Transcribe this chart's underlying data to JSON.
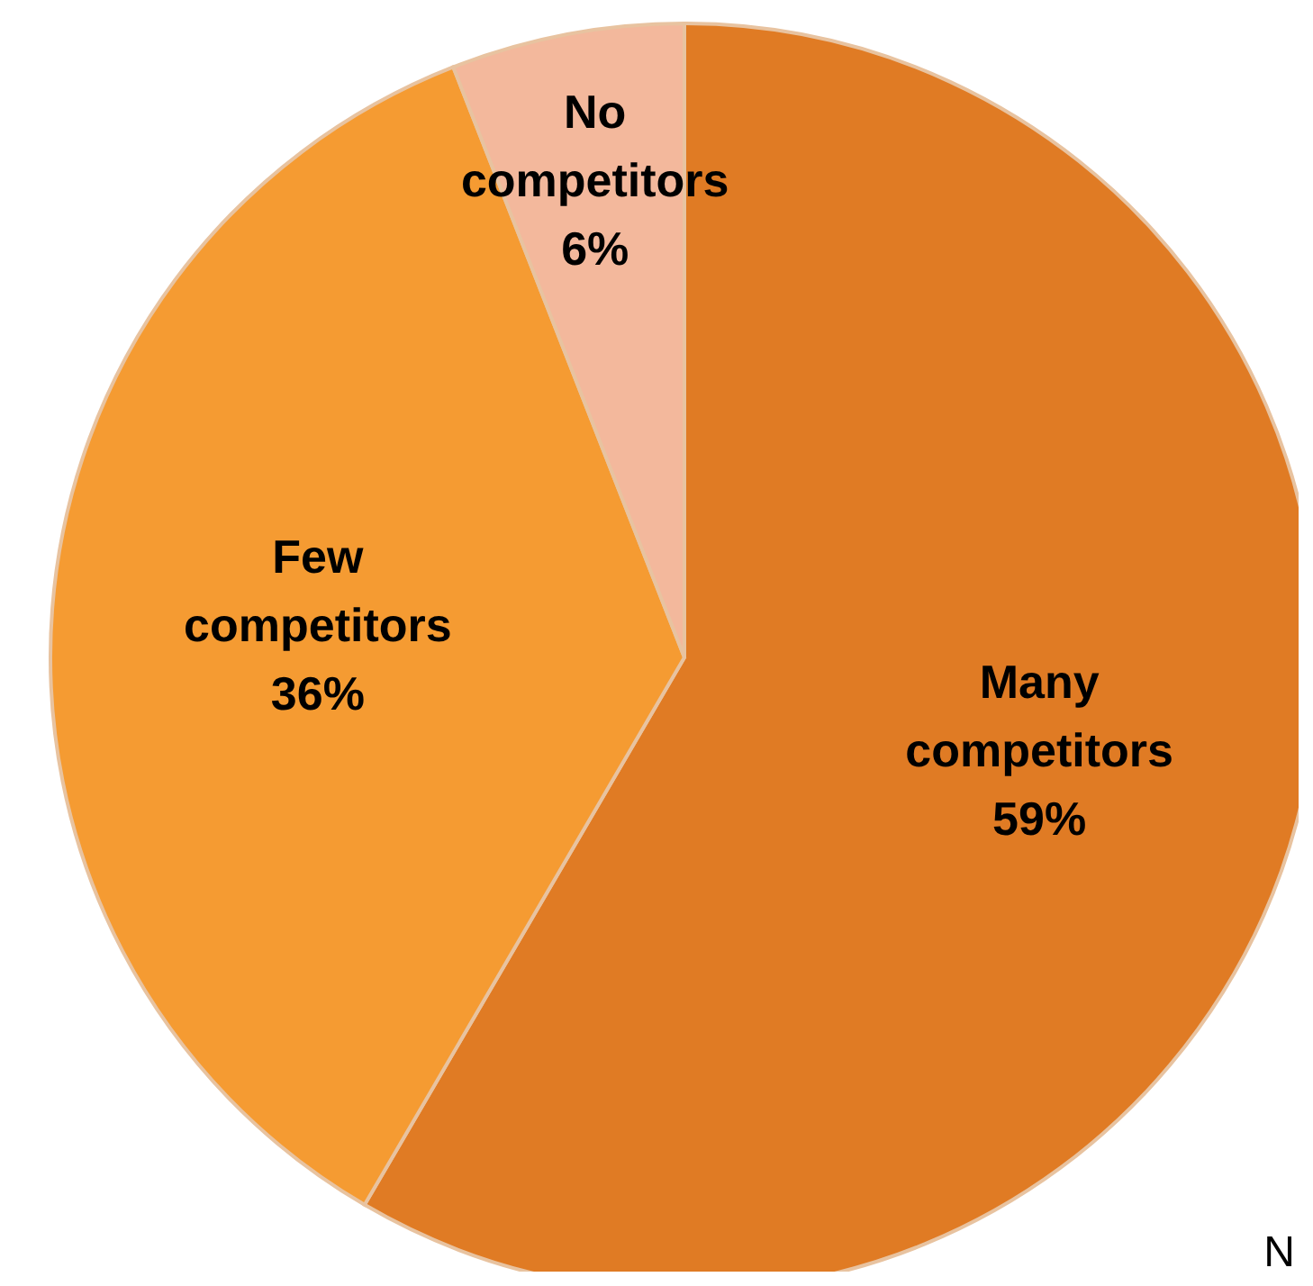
{
  "chart_data": {
    "type": "pie",
    "categories": [
      "Many competitors",
      "Few competitors",
      "No competitors"
    ],
    "values": [
      59,
      36,
      6
    ],
    "value_labels": [
      "59%",
      "36%",
      "6%"
    ],
    "colors": [
      "#e07b24",
      "#f59b32",
      "#f3b89c"
    ],
    "annotations": [
      "N"
    ]
  }
}
